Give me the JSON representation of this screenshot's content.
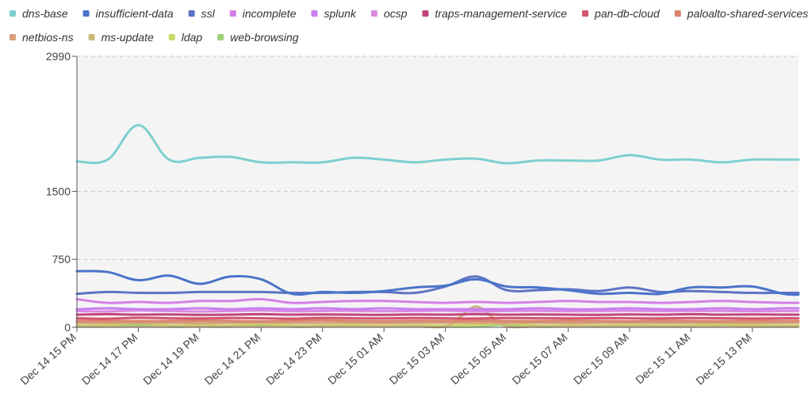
{
  "chart_data": {
    "type": "line",
    "title": "",
    "xlabel": "",
    "ylabel": "",
    "y_ticks": [
      "2990",
      "1500",
      "750",
      "0"
    ],
    "ylim": [
      0,
      2990
    ],
    "x_tick_labels": [
      "Dec 14 15 PM",
      "Dec 14 17 PM",
      "Dec 14 19 PM",
      "Dec 14 21 PM",
      "Dec 14 23 PM",
      "Dec 15 01 AM",
      "Dec 15 03 AM",
      "Dec 15 05 AM",
      "Dec 15 07 AM",
      "Dec 15 09 AM",
      "Dec 15 11 AM",
      "Dec 15 13 PM"
    ],
    "x_start_hour": 15,
    "x_end_hour": 38.5,
    "legend_position": "top",
    "grid": true,
    "series": [
      {
        "name": "dns-base",
        "color": "#7ecfcf",
        "x": [
          15,
          16,
          17,
          18,
          19,
          20,
          21,
          22,
          23,
          24,
          25,
          26,
          27,
          28,
          29,
          30,
          31,
          32,
          33,
          34,
          35,
          36,
          37,
          38,
          38.5
        ],
        "values": [
          1830,
          1850,
          2230,
          1850,
          1870,
          1880,
          1820,
          1820,
          1820,
          1870,
          1850,
          1820,
          1850,
          1860,
          1810,
          1840,
          1840,
          1840,
          1900,
          1850,
          1850,
          1820,
          1850,
          1850,
          1850
        ]
      },
      {
        "name": "insufficient-data",
        "color": "#4a74c9",
        "x": [
          15,
          16,
          17,
          18,
          19,
          20,
          21,
          22,
          23,
          24,
          25,
          26,
          27,
          28,
          29,
          30,
          31,
          32,
          33,
          34,
          35,
          36,
          37,
          38,
          38.5
        ],
        "values": [
          620,
          610,
          520,
          570,
          480,
          560,
          530,
          370,
          390,
          380,
          400,
          440,
          460,
          530,
          450,
          440,
          410,
          370,
          380,
          370,
          440,
          440,
          450,
          370,
          360
        ]
      },
      {
        "name": "ssl",
        "color": "#5e73c4",
        "x": [
          15,
          16,
          17,
          18,
          19,
          20,
          21,
          22,
          23,
          24,
          25,
          26,
          27,
          28,
          29,
          30,
          31,
          32,
          33,
          34,
          35,
          36,
          37,
          38,
          38.5
        ],
        "values": [
          370,
          390,
          380,
          380,
          390,
          390,
          390,
          380,
          380,
          390,
          390,
          380,
          450,
          560,
          410,
          410,
          420,
          400,
          440,
          390,
          400,
          390,
          380,
          380,
          380
        ]
      },
      {
        "name": "incomplete",
        "color": "#d47fe8",
        "x": [
          15,
          16,
          17,
          18,
          19,
          20,
          21,
          22,
          23,
          24,
          25,
          26,
          27,
          28,
          29,
          30,
          31,
          32,
          33,
          34,
          35,
          36,
          37,
          38,
          38.5
        ],
        "values": [
          310,
          270,
          280,
          270,
          290,
          290,
          310,
          270,
          280,
          290,
          290,
          280,
          270,
          280,
          270,
          280,
          290,
          280,
          280,
          270,
          280,
          290,
          280,
          270,
          270
        ]
      },
      {
        "name": "splunk",
        "color": "#c97ff0",
        "x": [
          15,
          16,
          17,
          18,
          19,
          20,
          21,
          22,
          23,
          24,
          25,
          26,
          27,
          28,
          29,
          30,
          31,
          32,
          33,
          34,
          35,
          36,
          37,
          38,
          38.5
        ],
        "values": [
          200,
          210,
          200,
          200,
          210,
          200,
          210,
          200,
          210,
          200,
          210,
          200,
          200,
          200,
          200,
          210,
          200,
          200,
          210,
          200,
          200,
          210,
          200,
          210,
          210
        ]
      },
      {
        "name": "ocsp",
        "color": "#d98be0",
        "x": [
          15,
          16,
          17,
          18,
          19,
          20,
          21,
          22,
          23,
          24,
          25,
          26,
          27,
          28,
          29,
          30,
          31,
          32,
          33,
          34,
          35,
          36,
          37,
          38,
          38.5
        ],
        "values": [
          180,
          175,
          185,
          180,
          175,
          180,
          185,
          178,
          180,
          182,
          178,
          180,
          184,
          176,
          180,
          182,
          178,
          180,
          183,
          179,
          180,
          181,
          178,
          180,
          180
        ]
      },
      {
        "name": "traps-management-service",
        "color": "#c2457d",
        "x": [
          15,
          16,
          17,
          18,
          19,
          20,
          21,
          22,
          23,
          24,
          25,
          26,
          27,
          28,
          29,
          30,
          31,
          32,
          33,
          34,
          35,
          36,
          37,
          38,
          38.5
        ],
        "values": [
          140,
          145,
          140,
          142,
          138,
          140,
          145,
          140,
          142,
          140,
          138,
          142,
          140,
          145,
          140,
          142,
          140,
          138,
          142,
          140,
          145,
          140,
          142,
          140,
          140
        ]
      },
      {
        "name": "pan-db-cloud",
        "color": "#d4556e",
        "x": [
          15,
          16,
          17,
          18,
          19,
          20,
          21,
          22,
          23,
          24,
          25,
          26,
          27,
          28,
          29,
          30,
          31,
          32,
          33,
          34,
          35,
          36,
          37,
          38,
          38.5
        ],
        "values": [
          100,
          95,
          105,
          100,
          98,
          102,
          100,
          96,
          104,
          100,
          98,
          102,
          100,
          97,
          103,
          100,
          99,
          101,
          100,
          98,
          102,
          100,
          97,
          100,
          100
        ]
      },
      {
        "name": "paloalto-shared-services",
        "color": "#d9846f",
        "x": [
          15,
          16,
          17,
          18,
          19,
          20,
          21,
          22,
          23,
          24,
          25,
          26,
          27,
          28,
          29,
          30,
          31,
          32,
          33,
          34,
          35,
          36,
          37,
          38,
          38.5
        ],
        "values": [
          70,
          72,
          68,
          70,
          74,
          70,
          66,
          72,
          78,
          70,
          68,
          72,
          70,
          74,
          70,
          68,
          72,
          70,
          66,
          72,
          70,
          68,
          72,
          70,
          70
        ]
      },
      {
        "name": "netbios-ns",
        "color": "#d9a07c",
        "x": [
          15,
          16,
          17,
          18,
          19,
          20,
          21,
          22,
          23,
          24,
          25,
          26,
          27,
          28,
          29,
          30,
          31,
          32,
          33,
          34,
          35,
          36,
          37,
          38,
          38.5
        ],
        "values": [
          50,
          48,
          52,
          50,
          47,
          50,
          53,
          49,
          50,
          51,
          48,
          50,
          52,
          49,
          50,
          51,
          48,
          50,
          52,
          49,
          50,
          51,
          48,
          50,
          50
        ]
      },
      {
        "name": "ms-update",
        "color": "#cbb77a",
        "x": [
          15,
          16,
          17,
          18,
          19,
          20,
          21,
          22,
          23,
          24,
          25,
          26,
          27,
          27.5,
          28,
          28.5,
          29,
          30,
          31,
          32,
          33,
          34,
          35,
          36,
          37,
          38,
          38.5
        ],
        "values": [
          10,
          10,
          10,
          10,
          10,
          10,
          10,
          10,
          10,
          10,
          10,
          10,
          10,
          120,
          230,
          120,
          10,
          10,
          10,
          10,
          10,
          10,
          10,
          10,
          10,
          10,
          10
        ]
      },
      {
        "name": "ldap",
        "color": "#c8d96a",
        "x": [
          15,
          16,
          17,
          18,
          19,
          20,
          21,
          22,
          23,
          24,
          25,
          26,
          27,
          28,
          29,
          30,
          31,
          32,
          33,
          34,
          35,
          36,
          37,
          38,
          38.5
        ],
        "values": [
          20,
          25,
          60,
          20,
          25,
          20,
          45,
          20,
          22,
          25,
          20,
          22,
          20,
          25,
          45,
          20,
          22,
          20,
          25,
          20,
          22,
          40,
          25,
          20,
          20
        ]
      },
      {
        "name": "web-browsing",
        "color": "#9fce7a",
        "x": [
          15,
          16,
          17,
          18,
          19,
          20,
          21,
          22,
          23,
          24,
          25,
          26,
          27,
          28,
          29,
          30,
          31,
          32,
          33,
          34,
          35,
          36,
          37,
          38,
          38.5
        ],
        "values": [
          8,
          10,
          35,
          8,
          10,
          8,
          30,
          8,
          10,
          10,
          8,
          10,
          8,
          10,
          30,
          8,
          10,
          8,
          10,
          8,
          10,
          30,
          10,
          8,
          8
        ]
      }
    ]
  }
}
